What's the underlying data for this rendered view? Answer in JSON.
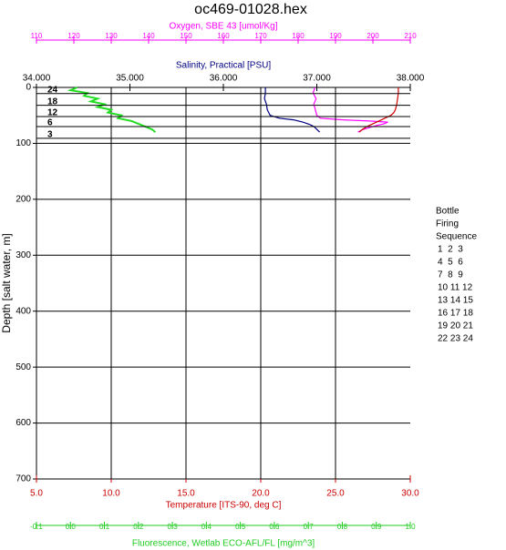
{
  "chart_data": {
    "type": "profile",
    "title": "oc469-01028.hex",
    "depth_axis": {
      "label": "Depth [salt water, m]",
      "ylim": [
        0,
        700
      ],
      "yticks": [
        0,
        100,
        200,
        300,
        400,
        500,
        600,
        700
      ],
      "grid": true
    },
    "series": [
      {
        "name": "Oxygen, SBE 43 [umol/Kg]",
        "color": "#ff00ff",
        "label_color": "#ff00ff",
        "grid": false,
        "xlim": [
          110,
          210
        ],
        "xticks": [
          110,
          120,
          130,
          140,
          150,
          160,
          170,
          180,
          190,
          200,
          210
        ],
        "depth": [
          0,
          10,
          20,
          30,
          40,
          50,
          55,
          58,
          60,
          62,
          65,
          68,
          72,
          76,
          80
        ],
        "values": [
          184.5,
          184,
          184.8,
          184.2,
          184.6,
          185,
          186,
          192,
          199,
          204,
          203,
          201,
          199,
          197,
          196
        ]
      },
      {
        "name": "Salinity, Practical [PSU]",
        "color": "#000080",
        "label_color": "#000000",
        "grid": false,
        "xlim": [
          34,
          38
        ],
        "xticks": [
          {
            "value": 34,
            "label": "34.000"
          },
          {
            "value": 35,
            "label": "35.000"
          },
          {
            "value": 36,
            "label": "36.000"
          },
          {
            "value": 37,
            "label": "37.000"
          },
          {
            "value": 38,
            "label": "38.000"
          }
        ],
        "depth": [
          0,
          10,
          20,
          30,
          40,
          50,
          55,
          58,
          62,
          66,
          70,
          75,
          80
        ],
        "values": [
          36.45,
          36.45,
          36.44,
          36.46,
          36.47,
          36.5,
          36.6,
          36.75,
          36.85,
          36.92,
          36.97,
          37.0,
          37.03
        ]
      },
      {
        "name": "Temperature [ITS-90, deg C]",
        "color": "#cc0000",
        "label_color": "#cc0000",
        "grid": true,
        "xlim": [
          5,
          30
        ],
        "xticks": [
          {
            "value": 5,
            "label": "5.0"
          },
          {
            "value": 10,
            "label": "10.0"
          },
          {
            "value": 15,
            "label": "15.0"
          },
          {
            "value": 20,
            "label": "20.0"
          },
          {
            "value": 25,
            "label": "25.0"
          },
          {
            "value": 30,
            "label": "30.0"
          }
        ],
        "depth": [
          0,
          10,
          20,
          30,
          40,
          45,
          50,
          55,
          60,
          65,
          70,
          75,
          80
        ],
        "values": [
          29.2,
          29.2,
          29.15,
          29.1,
          29.0,
          28.9,
          28.7,
          28.3,
          27.9,
          27.5,
          27.1,
          26.8,
          26.6
        ]
      },
      {
        "name": "Fluorescence, Wetlab ECO-AFL/FL [mg/m^3]",
        "color": "#22dd22",
        "label_color": "#22cc22",
        "grid": false,
        "xlim": [
          -0.1,
          1.0
        ],
        "xticks": [
          -0.1,
          {
            "value": 0,
            "label": "0.0"
          },
          0.1,
          0.2,
          0.3,
          0.4,
          0.5,
          0.6,
          0.7,
          0.8,
          0.9,
          {
            "value": 1.0,
            "label": "1.0"
          }
        ],
        "depth": [
          0,
          5,
          10,
          15,
          20,
          25,
          30,
          35,
          40,
          45,
          50,
          55,
          60,
          65,
          70,
          75,
          80
        ],
        "values": [
          0.02,
          0.0,
          0.05,
          0.04,
          0.08,
          0.06,
          0.1,
          0.08,
          0.12,
          0.11,
          0.15,
          0.14,
          0.18,
          0.2,
          0.22,
          0.24,
          0.25
        ]
      }
    ],
    "bottles": [
      {
        "label": "24",
        "depth": 11
      },
      {
        "label": "18",
        "depth": 32
      },
      {
        "label": "12",
        "depth": 52
      },
      {
        "label": "6",
        "depth": 70
      },
      {
        "label": "3",
        "depth": 91
      }
    ],
    "bottle_legend": {
      "title": [
        "Bottle",
        "Firing",
        "Sequence"
      ],
      "rows": [
        "1  2  3",
        "4  5  6",
        "7  8  9",
        "10 11 12",
        "13 14 15",
        "16 17 18",
        "19 20 21",
        "22 23 24"
      ]
    }
  }
}
